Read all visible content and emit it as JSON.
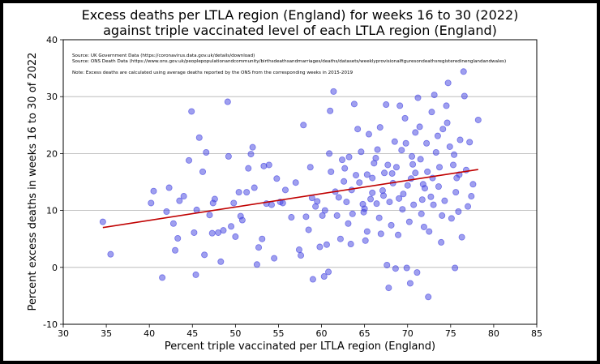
{
  "chart_data": {
    "type": "scatter",
    "title_line1": "Excess deaths per LTLA region (England) for weeks 16 to 30 (2022)",
    "title_line2": "against triple vaccinated level of each LTLA region (England)",
    "xlabel": "Percent triple vaccinated per LTLA region (England)",
    "ylabel": "Percent excess deaths in weeks 16 to 30 of 2022",
    "xlim": [
      30,
      85
    ],
    "ylim": [
      -10,
      40
    ],
    "xticks": [
      30,
      35,
      40,
      45,
      50,
      55,
      60,
      65,
      70,
      75,
      80,
      85
    ],
    "yticks": [
      -10,
      0,
      10,
      20,
      30,
      40
    ],
    "grid": "horizontal",
    "notes": [
      "Source: UK Government Data (https://coronavirus.data.gov.uk/details/download)",
      "Source: ONS Death Data (https://www.ons.gov.uk/peoplepopulationandcommunity/birthsdeathsandmarriages/deaths/datasets/weeklyprovisionalfiguresondeathsregisteredinenglandandwales)",
      "Note: Excess deaths are calculated using average deaths reported by the ONS from the corresponding weeks in 2015-2019"
    ],
    "point_color": "#4040e0",
    "trend_color": "#c00000",
    "trend_line": {
      "x": [
        34.6,
        78.2
      ],
      "y": [
        7.0,
        17.2
      ]
    },
    "points": [
      [
        34.6,
        8.0
      ],
      [
        35.5,
        2.3
      ],
      [
        40.2,
        11.3
      ],
      [
        40.5,
        13.4
      ],
      [
        41.5,
        -1.8
      ],
      [
        42.0,
        9.8
      ],
      [
        42.3,
        14.0
      ],
      [
        42.8,
        7.7
      ],
      [
        43.0,
        3.0
      ],
      [
        43.3,
        5.1
      ],
      [
        43.5,
        11.7
      ],
      [
        44.0,
        12.5
      ],
      [
        44.6,
        18.8
      ],
      [
        44.9,
        27.4
      ],
      [
        45.2,
        6.1
      ],
      [
        45.4,
        -1.3
      ],
      [
        45.5,
        10.1
      ],
      [
        45.8,
        22.8
      ],
      [
        46.2,
        16.8
      ],
      [
        46.4,
        2.2
      ],
      [
        46.6,
        20.2
      ],
      [
        47.0,
        9.2
      ],
      [
        47.3,
        6.0
      ],
      [
        47.4,
        11.3
      ],
      [
        47.6,
        12.0
      ],
      [
        48.0,
        6.1
      ],
      [
        48.3,
        1.0
      ],
      [
        48.6,
        6.5
      ],
      [
        49.1,
        29.1
      ],
      [
        49.2,
        19.5
      ],
      [
        49.5,
        7.2
      ],
      [
        49.8,
        11.3
      ],
      [
        50.0,
        5.4
      ],
      [
        50.4,
        13.2
      ],
      [
        50.6,
        9.0
      ],
      [
        50.8,
        8.3
      ],
      [
        51.3,
        13.2
      ],
      [
        51.5,
        17.4
      ],
      [
        51.8,
        19.9
      ],
      [
        52.0,
        21.1
      ],
      [
        52.2,
        14.0
      ],
      [
        52.5,
        0.5
      ],
      [
        52.7,
        3.5
      ],
      [
        53.1,
        5.0
      ],
      [
        53.3,
        17.8
      ],
      [
        53.6,
        11.2
      ],
      [
        53.9,
        18.0
      ],
      [
        54.2,
        11.0
      ],
      [
        54.5,
        1.6
      ],
      [
        54.8,
        15.6
      ],
      [
        55.2,
        11.5
      ],
      [
        55.5,
        11.3
      ],
      [
        55.8,
        13.6
      ],
      [
        56.5,
        8.8
      ],
      [
        57.0,
        14.9
      ],
      [
        57.4,
        3.1
      ],
      [
        57.6,
        2.1
      ],
      [
        57.9,
        25.0
      ],
      [
        58.2,
        8.9
      ],
      [
        58.5,
        6.6
      ],
      [
        58.7,
        17.6
      ],
      [
        58.9,
        12.2
      ],
      [
        59.0,
        -2.1
      ],
      [
        59.3,
        10.7
      ],
      [
        59.5,
        11.6
      ],
      [
        59.8,
        3.6
      ],
      [
        60.1,
        9.1
      ],
      [
        60.3,
        -1.6
      ],
      [
        60.4,
        10.0
      ],
      [
        60.6,
        4.0
      ],
      [
        60.8,
        -0.8
      ],
      [
        60.9,
        20.0
      ],
      [
        61.1,
        16.8
      ],
      [
        61.0,
        27.5
      ],
      [
        61.4,
        30.9
      ],
      [
        61.6,
        13.3
      ],
      [
        61.8,
        9.1
      ],
      [
        62.0,
        12.3
      ],
      [
        62.2,
        5.0
      ],
      [
        62.4,
        18.9
      ],
      [
        62.7,
        17.4
      ],
      [
        62.9,
        11.5
      ],
      [
        63.1,
        7.7
      ],
      [
        63.4,
        4.1
      ],
      [
        63.6,
        9.4
      ],
      [
        63.8,
        28.7
      ],
      [
        64.0,
        16.2
      ],
      [
        64.2,
        24.3
      ],
      [
        64.4,
        14.9
      ],
      [
        64.6,
        20.3
      ],
      [
        64.8,
        11.1
      ],
      [
        65.0,
        10.3
      ],
      [
        65.1,
        4.7
      ],
      [
        65.3,
        6.3
      ],
      [
        65.5,
        23.4
      ],
      [
        65.7,
        12.0
      ],
      [
        65.9,
        15.7
      ],
      [
        66.1,
        18.3
      ],
      [
        66.3,
        19.2
      ],
      [
        66.5,
        20.7
      ],
      [
        66.7,
        8.7
      ],
      [
        66.9,
        5.9
      ],
      [
        67.1,
        13.5
      ],
      [
        67.3,
        16.6
      ],
      [
        67.5,
        28.6
      ],
      [
        67.6,
        0.4
      ],
      [
        67.8,
        -3.6
      ],
      [
        67.9,
        11.5
      ],
      [
        68.1,
        7.4
      ],
      [
        68.3,
        14.8
      ],
      [
        68.5,
        22.1
      ],
      [
        68.7,
        17.6
      ],
      [
        68.9,
        5.7
      ],
      [
        69.1,
        28.4
      ],
      [
        69.3,
        20.6
      ],
      [
        69.5,
        12.9
      ],
      [
        69.7,
        26.2
      ],
      [
        69.9,
        -0.1
      ],
      [
        70.0,
        14.4
      ],
      [
        70.2,
        8.0
      ],
      [
        70.3,
        -2.8
      ],
      [
        70.5,
        19.5
      ],
      [
        70.7,
        11.0
      ],
      [
        70.9,
        16.6
      ],
      [
        71.1,
        -0.9
      ],
      [
        71.2,
        29.8
      ],
      [
        71.4,
        24.7
      ],
      [
        71.6,
        9.4
      ],
      [
        71.8,
        14.6
      ],
      [
        72.0,
        13.9
      ],
      [
        72.2,
        21.8
      ],
      [
        72.4,
        -5.2
      ],
      [
        72.5,
        6.3
      ],
      [
        72.7,
        12.4
      ],
      [
        72.9,
        15.7
      ],
      [
        73.1,
        30.3
      ],
      [
        73.3,
        20.2
      ],
      [
        73.5,
        23.1
      ],
      [
        73.7,
        17.6
      ],
      [
        73.9,
        4.4
      ],
      [
        74.1,
        24.3
      ],
      [
        74.3,
        11.7
      ],
      [
        74.5,
        28.4
      ],
      [
        74.7,
        32.4
      ],
      [
        74.9,
        21.2
      ],
      [
        75.1,
        8.6
      ],
      [
        75.3,
        18.0
      ],
      [
        75.5,
        -0.1
      ],
      [
        75.7,
        15.7
      ],
      [
        75.9,
        9.8
      ],
      [
        76.1,
        22.4
      ],
      [
        76.3,
        5.3
      ],
      [
        76.5,
        34.4
      ],
      [
        76.6,
        30.1
      ],
      [
        76.8,
        17.1
      ],
      [
        77.0,
        10.7
      ],
      [
        77.2,
        22.0
      ],
      [
        77.4,
        12.5
      ],
      [
        77.6,
        14.6
      ],
      [
        78.2,
        25.9
      ],
      [
        63.2,
        19.4
      ],
      [
        66.8,
        24.6
      ],
      [
        70.6,
        18.1
      ],
      [
        72.8,
        27.3
      ],
      [
        65.9,
        13.1
      ],
      [
        69.4,
        10.2
      ],
      [
        68.2,
        16.5
      ],
      [
        71.9,
        7.1
      ],
      [
        73.6,
        14.2
      ],
      [
        75.6,
        13.2
      ],
      [
        64.9,
        9.7
      ],
      [
        62.6,
        15.1
      ],
      [
        67.2,
        12.6
      ],
      [
        69.8,
        21.8
      ],
      [
        71.5,
        19.0
      ],
      [
        74.0,
        9.1
      ],
      [
        76.0,
        16.3
      ],
      [
        68.6,
        -0.2
      ],
      [
        66.4,
        11.2
      ],
      [
        70.9,
        23.7
      ],
      [
        72.3,
        16.8
      ],
      [
        73.0,
        11.0
      ],
      [
        74.6,
        25.4
      ],
      [
        75.4,
        19.8
      ],
      [
        63.5,
        13.6
      ],
      [
        65.3,
        16.3
      ],
      [
        67.7,
        18.0
      ],
      [
        69.0,
        12.1
      ],
      [
        70.4,
        15.6
      ],
      [
        71.7,
        11.9
      ]
    ]
  }
}
